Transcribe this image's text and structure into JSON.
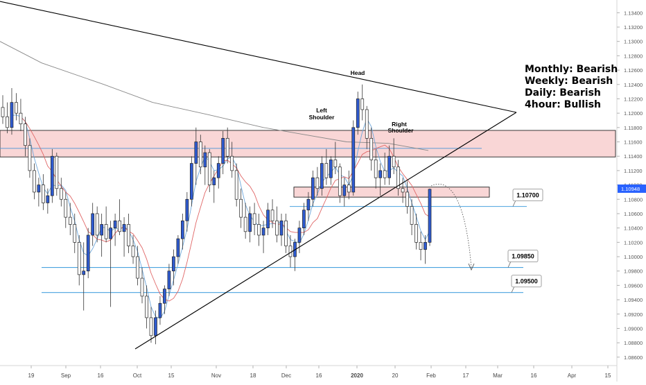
{
  "chart_data": {
    "type": "candlestick",
    "symbol_last_price": "1.10948",
    "y_axis": {
      "ylim": [
        1.0855,
        1.135
      ],
      "ticks": [
        "1.13400",
        "1.13200",
        "1.13000",
        "1.12800",
        "1.12600",
        "1.12400",
        "1.12200",
        "1.12000",
        "1.11800",
        "1.11600",
        "1.11400",
        "1.11200",
        "1.11000",
        "1.10800",
        "1.10600",
        "1.10400",
        "1.10200",
        "1.10000",
        "1.09800",
        "1.09600",
        "1.09400",
        "1.09200",
        "1.09000",
        "1.08800",
        "1.08600"
      ]
    },
    "x_axis": {
      "ticks": [
        "19",
        "Sep",
        "16",
        "Oct",
        "15",
        "Nov",
        "18",
        "Dec",
        "16",
        "2020",
        "20",
        "Feb",
        "17",
        "Mar",
        "16",
        "Apr",
        "15"
      ]
    },
    "horizontal_levels": [
      {
        "label": "1.10700",
        "value": 1.107
      },
      {
        "label": "1.09850",
        "value": 1.0985
      },
      {
        "label": "1.09500",
        "value": 1.095
      }
    ],
    "zones": [
      {
        "name": "upper-resistance-zone",
        "from": 1.1139,
        "to": 1.1176
      },
      {
        "name": "neckline-zone",
        "from": 1.1083,
        "to": 1.1097
      }
    ],
    "pattern_labels": {
      "head": "Head",
      "left_shoulder_1": "Left",
      "left_shoulder_2": "Shoulder",
      "right_shoulder_1": "Right",
      "right_shoulder_2": "Shoulder"
    },
    "trend_bias": [
      "Monthly: Bearish",
      "Weekly: Bearish",
      "Daily: Bearish",
      "4hour: Bullish"
    ],
    "candles": [
      [
        1.1208,
        1.1225,
        1.1185,
        1.1195
      ],
      [
        1.1195,
        1.1215,
        1.1172,
        1.118
      ],
      [
        1.118,
        1.1235,
        1.117,
        1.1215
      ],
      [
        1.1215,
        1.1228,
        1.119,
        1.12
      ],
      [
        1.12,
        1.122,
        1.1175,
        1.1185
      ],
      [
        1.1185,
        1.1195,
        1.114,
        1.1155
      ],
      [
        1.1155,
        1.1165,
        1.111,
        1.112
      ],
      [
        1.112,
        1.113,
        1.108,
        1.109
      ],
      [
        1.109,
        1.111,
        1.107,
        1.11
      ],
      [
        1.11,
        1.1115,
        1.1065,
        1.1075
      ],
      [
        1.1075,
        1.1095,
        1.106,
        1.1085
      ],
      [
        1.1085,
        1.115,
        1.1075,
        1.114
      ],
      [
        1.114,
        1.1145,
        1.1085,
        1.1095
      ],
      [
        1.1095,
        1.111,
        1.107,
        1.108
      ],
      [
        1.108,
        1.109,
        1.104,
        1.1055
      ],
      [
        1.1055,
        1.1075,
        1.103,
        1.1045
      ],
      [
        1.1045,
        1.106,
        1.1005,
        1.102
      ],
      [
        1.102,
        1.103,
        1.096,
        1.0975
      ],
      [
        1.0975,
        1.102,
        1.0925,
        1.098
      ],
      [
        1.098,
        1.104,
        1.097,
        1.103
      ],
      [
        1.103,
        1.1075,
        1.1015,
        1.106
      ],
      [
        1.106,
        1.107,
        1.102,
        1.103
      ],
      [
        1.103,
        1.106,
        1.1,
        1.1045
      ],
      [
        1.1045,
        1.107,
        1.102,
        1.1025
      ],
      [
        1.1025,
        1.105,
        1.093,
        1.104
      ],
      [
        1.104,
        1.106,
        1.1015,
        1.105
      ],
      [
        1.105,
        1.108,
        1.103,
        1.1035
      ],
      [
        1.1035,
        1.1055,
        1.1,
        1.1045
      ],
      [
        1.1045,
        1.106,
        1.1005,
        1.1015
      ],
      [
        1.1015,
        1.103,
        1.099,
        1.1
      ],
      [
        1.1,
        1.1015,
        1.096,
        1.097
      ],
      [
        1.097,
        1.0985,
        1.0935,
        1.0945
      ],
      [
        1.0945,
        1.096,
        1.09,
        1.0915
      ],
      [
        1.0915,
        1.093,
        1.088,
        1.089
      ],
      [
        1.089,
        1.0925,
        1.0878,
        1.0915
      ],
      [
        1.0915,
        1.0945,
        1.0905,
        1.0935
      ],
      [
        1.0935,
        1.096,
        1.092,
        1.0955
      ],
      [
        1.0955,
        1.099,
        1.0945,
        1.098
      ],
      [
        1.098,
        1.101,
        1.096,
        1.1
      ],
      [
        1.1,
        1.103,
        1.099,
        1.1025
      ],
      [
        1.1025,
        1.106,
        1.101,
        1.105
      ],
      [
        1.105,
        1.109,
        1.1035,
        1.108
      ],
      [
        1.108,
        1.114,
        1.107,
        1.113
      ],
      [
        1.113,
        1.118,
        1.11,
        1.116
      ],
      [
        1.116,
        1.117,
        1.1115,
        1.1125
      ],
      [
        1.1125,
        1.1155,
        1.11,
        1.1145
      ],
      [
        1.1145,
        1.115,
        1.109,
        1.11
      ],
      [
        1.11,
        1.112,
        1.1075,
        1.111
      ],
      [
        1.111,
        1.114,
        1.1095,
        1.113
      ],
      [
        1.113,
        1.1175,
        1.1115,
        1.1165
      ],
      [
        1.1165,
        1.118,
        1.113,
        1.114
      ],
      [
        1.114,
        1.116,
        1.111,
        1.112
      ],
      [
        1.112,
        1.113,
        1.107,
        1.108
      ],
      [
        1.108,
        1.1095,
        1.104,
        1.1055
      ],
      [
        1.1055,
        1.1075,
        1.1025,
        1.1035
      ],
      [
        1.1035,
        1.107,
        1.102,
        1.106
      ],
      [
        1.106,
        1.1075,
        1.103,
        1.1045
      ],
      [
        1.1045,
        1.106,
        1.1015,
        1.103
      ],
      [
        1.103,
        1.105,
        1.1005,
        1.104
      ],
      [
        1.104,
        1.1075,
        1.103,
        1.1065
      ],
      [
        1.1065,
        1.108,
        1.104,
        1.105
      ],
      [
        1.105,
        1.107,
        1.102,
        1.103
      ],
      [
        1.103,
        1.106,
        1.1015,
        1.105
      ],
      [
        1.105,
        1.106,
        1.1005,
        1.1015
      ],
      [
        1.1015,
        1.103,
        1.0985,
        1.1
      ],
      [
        1.1,
        1.1025,
        1.098,
        1.102
      ],
      [
        1.102,
        1.105,
        1.1005,
        1.104
      ],
      [
        1.104,
        1.1075,
        1.103,
        1.1065
      ],
      [
        1.1065,
        1.109,
        1.105,
        1.108
      ],
      [
        1.108,
        1.112,
        1.107,
        1.111
      ],
      [
        1.111,
        1.1125,
        1.1085,
        1.1095
      ],
      [
        1.1095,
        1.114,
        1.1085,
        1.113
      ],
      [
        1.113,
        1.115,
        1.11,
        1.111
      ],
      [
        1.111,
        1.114,
        1.11,
        1.1135
      ],
      [
        1.1135,
        1.116,
        1.1115,
        1.1125
      ],
      [
        1.1125,
        1.113,
        1.1075,
        1.1085
      ],
      [
        1.1085,
        1.111,
        1.107,
        1.11
      ],
      [
        1.11,
        1.112,
        1.108,
        1.109
      ],
      [
        1.109,
        1.119,
        1.1085,
        1.118
      ],
      [
        1.118,
        1.123,
        1.117,
        1.122
      ],
      [
        1.122,
        1.124,
        1.119,
        1.1205
      ],
      [
        1.1205,
        1.121,
        1.115,
        1.1165
      ],
      [
        1.1165,
        1.118,
        1.112,
        1.1135
      ],
      [
        1.1135,
        1.115,
        1.1095,
        1.111
      ],
      [
        1.111,
        1.113,
        1.1085,
        1.112
      ],
      [
        1.112,
        1.1145,
        1.11,
        1.111
      ],
      [
        1.111,
        1.1155,
        1.11,
        1.114
      ],
      [
        1.114,
        1.1165,
        1.1115,
        1.1125
      ],
      [
        1.1125,
        1.1135,
        1.1085,
        1.1095
      ],
      [
        1.1095,
        1.111,
        1.1075,
        1.109
      ],
      [
        1.109,
        1.1105,
        1.106,
        1.107
      ],
      [
        1.107,
        1.108,
        1.103,
        1.1045
      ],
      [
        1.1045,
        1.106,
        1.101,
        1.102
      ],
      [
        1.102,
        1.1035,
        1.0995,
        1.101
      ],
      [
        1.101,
        1.103,
        1.099,
        1.102
      ],
      [
        1.102,
        1.1095,
        1.1015,
        1.1094
      ]
    ]
  }
}
